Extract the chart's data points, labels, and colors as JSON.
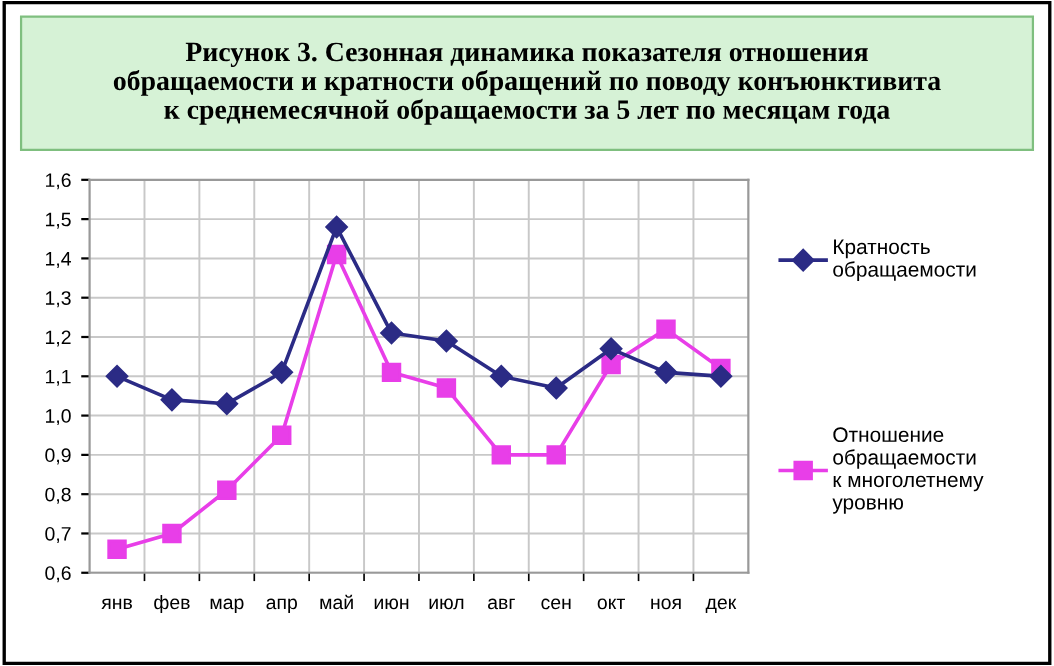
{
  "chart_data": {
    "type": "line",
    "title": "Рисунок 3. Сезонная динамика показателя отношения\nобращаемости и кратности обращений по поводу конъюнктивита\nк среднемесячной обращаемости за 5 лет по месяцам года",
    "categories": [
      "янв",
      "фев",
      "мар",
      "апр",
      "май",
      "июн",
      "июл",
      "авг",
      "сен",
      "окт",
      "ноя",
      "дек"
    ],
    "series": [
      {
        "name": "Кратность\nобращаемости",
        "color": "#2b2b85",
        "marker": "diamond",
        "values": [
          1.1,
          1.04,
          1.03,
          1.11,
          1.48,
          1.21,
          1.19,
          1.1,
          1.07,
          1.17,
          1.11,
          1.1
        ]
      },
      {
        "name": "Отношение\nобращаемости\nк многолетнему\nуровню",
        "color": "#e83ee8",
        "marker": "square",
        "values": [
          0.66,
          0.7,
          0.81,
          0.95,
          1.41,
          1.11,
          1.07,
          0.9,
          0.9,
          1.13,
          1.22,
          1.12
        ]
      }
    ],
    "ylim": [
      0.6,
      1.6
    ],
    "yticks": [
      {
        "value": 0.6,
        "label": "0,6"
      },
      {
        "value": 0.7,
        "label": "0,7"
      },
      {
        "value": 0.8,
        "label": "0,8"
      },
      {
        "value": 0.9,
        "label": "0,9"
      },
      {
        "value": 1.0,
        "label": "1,0"
      },
      {
        "value": 1.1,
        "label": "1,1"
      },
      {
        "value": 1.2,
        "label": "1,2"
      },
      {
        "value": 1.3,
        "label": "1,3"
      },
      {
        "value": 1.4,
        "label": "1,4"
      },
      {
        "value": 1.5,
        "label": "1,5"
      },
      {
        "value": 1.6,
        "label": "1,6"
      }
    ],
    "grid": true,
    "legend": "right",
    "line_style": "solid"
  }
}
